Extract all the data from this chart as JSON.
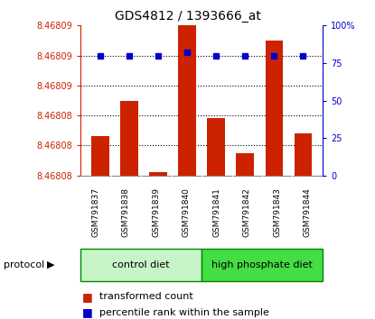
{
  "title": "GDS4812 / 1393666_at",
  "samples": [
    "GSM791837",
    "GSM791838",
    "GSM791839",
    "GSM791840",
    "GSM791841",
    "GSM791842",
    "GSM791843",
    "GSM791844"
  ],
  "transformed_counts": [
    8.4680826,
    8.468085,
    8.4680802,
    8.46809,
    8.4680838,
    8.4680815,
    8.468089,
    8.4680828
  ],
  "percentile_ranks": [
    80,
    80,
    80,
    82,
    80,
    80,
    80,
    80
  ],
  "bar_color": "#cc2200",
  "dot_color": "#0000cc",
  "tick_color_left": "#cc2200",
  "tick_color_right": "#0000cc",
  "ylim_left": [
    8.46808,
    8.46809
  ],
  "yticks_left": [
    8.46808,
    8.468082,
    8.468084,
    8.468086,
    8.468088,
    8.46809
  ],
  "ytick_labels_left": [
    "8.46808",
    "8.46808",
    "8.46808",
    "8.46809",
    "8.46809",
    "8.46809"
  ],
  "ylim_right": [
    0,
    100
  ],
  "yticks_right": [
    0,
    25,
    50,
    75,
    100
  ],
  "ytick_labels_right": [
    "0",
    "25",
    "50",
    "75",
    "100%"
  ],
  "bg_color_plot": "#ffffff",
  "bg_color_fig": "#ffffff",
  "ctrl_color_light": "#c8f5c8",
  "ctrl_color_dark": "#44dd44",
  "ctrl_edge": "#008800",
  "proto_label": "protocol",
  "group1_label": "control diet",
  "group2_label": "high phosphate diet",
  "legend1": "transformed count",
  "legend2": "percentile rank within the sample",
  "title_fontsize": 10,
  "tick_fontsize": 7,
  "label_fontsize": 8,
  "legend_fontsize": 8
}
